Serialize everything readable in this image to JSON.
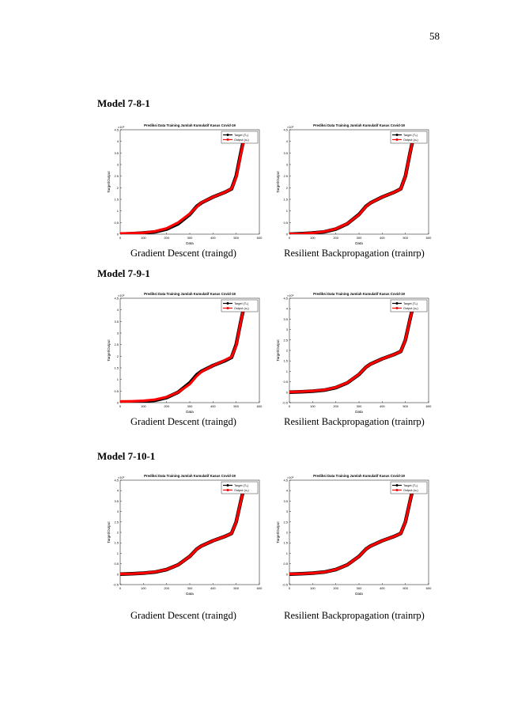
{
  "page_number": "58",
  "sections": [
    {
      "heading": "Model 7-8-1",
      "captions": [
        "Gradient Descent  (traingd)",
        "Resilient Backpropagation (trainrp)"
      ]
    },
    {
      "heading": "Model 7-9-1",
      "captions": [
        "Gradient Descent  (traingd)",
        "Resilient Backpropagation (trainrp)"
      ]
    },
    {
      "heading": "Model 7-10-1",
      "captions": [
        "Gradient Descent  (traingd)",
        "Resilient Backpropagation (trainrp)"
      ]
    }
  ],
  "chart_data": [
    {
      "type": "line",
      "title": "Prediksi Data Training Jumlah Kumulatif Kasus Covid-19",
      "xlabel": "Data",
      "ylabel": "Target/Output",
      "y_exponent": "×10⁵",
      "legend": "upper right",
      "x": [
        0,
        50,
        100,
        150,
        200,
        250,
        300,
        330,
        350,
        400,
        450,
        480,
        500,
        520,
        535
      ],
      "xlim": [
        0,
        600
      ],
      "xticks": [
        0,
        100,
        200,
        300,
        400,
        500,
        600
      ],
      "ylim": [
        0,
        4.5
      ],
      "yticks": [
        0,
        0.5,
        1,
        1.5,
        2,
        2.5,
        3,
        3.5,
        4,
        4.5
      ],
      "series": [
        {
          "name": "Target (Tₖ)",
          "color": "#000000",
          "values": [
            0,
            0.02,
            0.05,
            0.1,
            0.22,
            0.45,
            0.85,
            1.2,
            1.35,
            1.6,
            1.8,
            1.95,
            2.5,
            3.5,
            4.2
          ]
        },
        {
          "name": "Output (oₖ)",
          "color": "#ff0000",
          "values": [
            0.03,
            0.04,
            0.06,
            0.12,
            0.25,
            0.5,
            0.88,
            1.18,
            1.36,
            1.6,
            1.8,
            1.96,
            2.45,
            3.45,
            4.15
          ]
        }
      ]
    },
    {
      "type": "line",
      "title": "Prediksi Data Training Jumlah Kumulatif Kasus Covid-19",
      "xlabel": "Data",
      "ylabel": "Target/Output",
      "y_exponent": "×10⁵",
      "legend": "upper right",
      "x": [
        0,
        50,
        100,
        150,
        200,
        250,
        300,
        330,
        350,
        400,
        450,
        480,
        500,
        520,
        535
      ],
      "xlim": [
        0,
        600
      ],
      "xticks": [
        0,
        100,
        200,
        300,
        400,
        500,
        600
      ],
      "ylim": [
        0,
        4.5
      ],
      "yticks": [
        0,
        0.5,
        1,
        1.5,
        2,
        2.5,
        3,
        3.5,
        4,
        4.5
      ],
      "series": [
        {
          "name": "Target (Tₖ)",
          "color": "#000000",
          "values": [
            0,
            0.02,
            0.05,
            0.1,
            0.22,
            0.45,
            0.85,
            1.2,
            1.35,
            1.6,
            1.8,
            1.95,
            2.5,
            3.5,
            4.2
          ]
        },
        {
          "name": "Output (oₖ)",
          "color": "#ff0000",
          "values": [
            0.01,
            0.02,
            0.05,
            0.11,
            0.23,
            0.46,
            0.84,
            1.19,
            1.35,
            1.6,
            1.8,
            1.95,
            2.5,
            3.5,
            4.2
          ]
        }
      ]
    },
    {
      "type": "line",
      "title": "Prediksi Data Training Jumlah Kumulatif Kasus Covid-19",
      "xlabel": "Data",
      "ylabel": "Target/Output",
      "y_exponent": "×10⁵",
      "legend": "upper right",
      "x": [
        0,
        50,
        100,
        150,
        200,
        250,
        300,
        330,
        350,
        400,
        450,
        480,
        500,
        520,
        535
      ],
      "xlim": [
        0,
        600
      ],
      "xticks": [
        0,
        100,
        200,
        300,
        400,
        500,
        600
      ],
      "ylim": [
        0,
        4.5
      ],
      "yticks": [
        0,
        0.5,
        1,
        1.5,
        2,
        2.5,
        3,
        3.5,
        4,
        4.5
      ],
      "series": [
        {
          "name": "Target (Tₖ)",
          "color": "#000000",
          "values": [
            0,
            0.02,
            0.05,
            0.1,
            0.22,
            0.45,
            0.85,
            1.2,
            1.35,
            1.6,
            1.8,
            1.95,
            2.5,
            3.5,
            4.2
          ]
        },
        {
          "name": "Output (oₖ)",
          "color": "#ff0000",
          "values": [
            0.05,
            0.06,
            0.08,
            0.13,
            0.24,
            0.45,
            0.8,
            1.15,
            1.33,
            1.6,
            1.82,
            1.97,
            2.45,
            3.5,
            4.2
          ]
        }
      ]
    },
    {
      "type": "line",
      "title": "Prediksi Data Training Jumlah Kumulatif Kasus Covid-19",
      "xlabel": "Data",
      "ylabel": "Target/Output",
      "y_exponent": "×10⁵",
      "legend": "upper right",
      "x": [
        0,
        50,
        100,
        150,
        200,
        250,
        300,
        330,
        350,
        400,
        450,
        480,
        500,
        520,
        535
      ],
      "xlim": [
        0,
        600
      ],
      "xticks": [
        0,
        100,
        200,
        300,
        400,
        500,
        600
      ],
      "ylim": [
        -0.5,
        4.5
      ],
      "yticks": [
        -0.5,
        0,
        0.5,
        1,
        1.5,
        2,
        2.5,
        3,
        3.5,
        4,
        4.5
      ],
      "series": [
        {
          "name": "Target (Tₖ)",
          "color": "#000000",
          "values": [
            0,
            0.02,
            0.05,
            0.1,
            0.22,
            0.45,
            0.85,
            1.2,
            1.35,
            1.6,
            1.8,
            1.95,
            2.5,
            3.5,
            4.2
          ]
        },
        {
          "name": "Output (oₖ)",
          "color": "#ff0000",
          "values": [
            0.01,
            0.03,
            0.06,
            0.11,
            0.23,
            0.46,
            0.86,
            1.2,
            1.35,
            1.6,
            1.8,
            1.95,
            2.5,
            3.5,
            4.2
          ]
        }
      ]
    },
    {
      "type": "line",
      "title": "Prediksi Data Training Jumlah Kumulatif Kasus Covid-19",
      "xlabel": "Data",
      "ylabel": "Target/Output",
      "y_exponent": "×10⁵",
      "legend": "upper right",
      "x": [
        0,
        50,
        100,
        150,
        200,
        250,
        300,
        330,
        350,
        400,
        450,
        480,
        500,
        520,
        535
      ],
      "xlim": [
        0,
        600
      ],
      "xticks": [
        0,
        100,
        200,
        300,
        400,
        500,
        600
      ],
      "ylim": [
        -0.5,
        4.5
      ],
      "yticks": [
        -0.5,
        0,
        0.5,
        1,
        1.5,
        2,
        2.5,
        3,
        3.5,
        4,
        4.5
      ],
      "series": [
        {
          "name": "Target (Tₖ)",
          "color": "#000000",
          "values": [
            0,
            0.02,
            0.05,
            0.1,
            0.22,
            0.45,
            0.85,
            1.2,
            1.35,
            1.6,
            1.8,
            1.95,
            2.5,
            3.5,
            4.2
          ]
        },
        {
          "name": "Output (oₖ)",
          "color": "#ff0000",
          "values": [
            0.01,
            0.02,
            0.05,
            0.11,
            0.22,
            0.45,
            0.85,
            1.2,
            1.35,
            1.6,
            1.8,
            1.95,
            2.5,
            3.5,
            4.2
          ]
        }
      ]
    },
    {
      "type": "line",
      "title": "Prediksi Data Training Jumlah Kumulatif Kasus Covid-19",
      "xlabel": "Data",
      "ylabel": "Target/Output",
      "y_exponent": "×10⁵",
      "legend": "upper right",
      "x": [
        0,
        50,
        100,
        150,
        200,
        250,
        300,
        330,
        350,
        400,
        450,
        480,
        500,
        520,
        535
      ],
      "xlim": [
        0,
        600
      ],
      "xticks": [
        0,
        100,
        200,
        300,
        400,
        500,
        600
      ],
      "ylim": [
        -0.5,
        4.5
      ],
      "yticks": [
        -0.5,
        0,
        0.5,
        1,
        1.5,
        2,
        2.5,
        3,
        3.5,
        4,
        4.5
      ],
      "series": [
        {
          "name": "Target (Tₖ)",
          "color": "#000000",
          "values": [
            0,
            0.02,
            0.05,
            0.1,
            0.22,
            0.45,
            0.85,
            1.2,
            1.35,
            1.6,
            1.8,
            1.95,
            2.5,
            3.5,
            4.2
          ]
        },
        {
          "name": "Output (oₖ)",
          "color": "#ff0000",
          "values": [
            0.01,
            0.02,
            0.05,
            0.1,
            0.22,
            0.45,
            0.85,
            1.2,
            1.35,
            1.6,
            1.8,
            1.95,
            2.5,
            3.5,
            4.2
          ]
        }
      ]
    }
  ]
}
